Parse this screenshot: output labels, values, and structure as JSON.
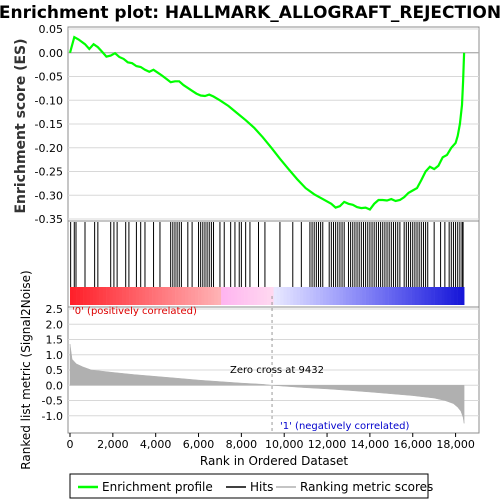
{
  "chart_data": [
    {
      "type": "line",
      "title": "Enrichment plot: HALLMARK_ALLOGRAFT_REJECTION",
      "ylabel": "Enrichment score (ES)",
      "ylim": [
        -0.35,
        0.05
      ],
      "yticks": [
        "0.05",
        "0.00",
        "-0.05",
        "-0.10",
        "-0.15",
        "-0.20",
        "-0.25",
        "-0.30",
        "-0.35"
      ],
      "grid": true,
      "series": [
        {
          "name": "Enrichment profile",
          "color": "#00ff00",
          "x": [
            0,
            200,
            400,
            700,
            900,
            1100,
            1300,
            1500,
            1700,
            1900,
            2100,
            2300,
            2500,
            2700,
            2900,
            3100,
            3300,
            3500,
            3700,
            3900,
            4100,
            4300,
            4500,
            4700,
            4900,
            5100,
            5300,
            5500,
            5700,
            5900,
            6100,
            6300,
            6500,
            6700,
            7000,
            7400,
            7800,
            8200,
            8600,
            9000,
            9400,
            9800,
            10200,
            10600,
            11000,
            11400,
            11800,
            12200,
            12400,
            12600,
            12800,
            13000,
            13200,
            13400,
            13600,
            13800,
            14000,
            14200,
            14400,
            14600,
            14800,
            15000,
            15200,
            15400,
            15600,
            15800,
            16000,
            16200,
            16400,
            16600,
            16800,
            17000,
            17200,
            17400,
            17600,
            17800,
            18000,
            18100,
            18200,
            18300,
            18350,
            18400
          ],
          "y": [
            0.0,
            0.033,
            0.028,
            0.018,
            0.008,
            0.018,
            0.012,
            0.002,
            -0.008,
            -0.006,
            -0.001,
            -0.009,
            -0.013,
            -0.02,
            -0.022,
            -0.028,
            -0.03,
            -0.036,
            -0.04,
            -0.036,
            -0.042,
            -0.048,
            -0.055,
            -0.062,
            -0.06,
            -0.06,
            -0.068,
            -0.074,
            -0.08,
            -0.086,
            -0.09,
            -0.091,
            -0.088,
            -0.092,
            -0.1,
            -0.112,
            -0.127,
            -0.142,
            -0.158,
            -0.178,
            -0.2,
            -0.223,
            -0.245,
            -0.266,
            -0.285,
            -0.298,
            -0.308,
            -0.318,
            -0.326,
            -0.323,
            -0.314,
            -0.318,
            -0.32,
            -0.325,
            -0.327,
            -0.326,
            -0.33,
            -0.318,
            -0.31,
            -0.31,
            -0.311,
            -0.308,
            -0.312,
            -0.31,
            -0.304,
            -0.295,
            -0.29,
            -0.285,
            -0.268,
            -0.25,
            -0.24,
            -0.245,
            -0.238,
            -0.22,
            -0.215,
            -0.2,
            -0.19,
            -0.175,
            -0.15,
            -0.11,
            -0.06,
            0.0
          ]
        }
      ],
      "zero_line": 0.0
    },
    {
      "type": "scatter",
      "series": [
        {
          "name": "Hits",
          "color": "#000000",
          "x": [
            30,
            200,
            280,
            700,
            1150,
            1300,
            1900,
            2050,
            2200,
            2600,
            2750,
            3100,
            3300,
            3500,
            3900,
            4200,
            4700,
            4800,
            4900,
            5000,
            5100,
            5200,
            5500,
            5700,
            6000,
            6100,
            6200,
            6300,
            6400,
            6500,
            6600,
            6700,
            7000,
            7200,
            7500,
            7700,
            7900,
            8000,
            8200,
            8400,
            8800,
            9100,
            9800,
            10400,
            10800,
            11200,
            11300,
            11400,
            11500,
            11600,
            11700,
            11800,
            12100,
            12200,
            12300,
            12400,
            12500,
            12600,
            12700,
            12800,
            13000,
            13100,
            13200,
            13300,
            13400,
            13500,
            13600,
            13700,
            13800,
            13900,
            14000,
            14100,
            14200,
            14300,
            14400,
            14500,
            14600,
            14700,
            14800,
            14900,
            15000,
            15100,
            15200,
            15300,
            15400,
            15600,
            15700,
            15800,
            15900,
            16000,
            16100,
            16200,
            16300,
            16400,
            16500,
            16600,
            16700,
            17000,
            17300,
            17500,
            17700,
            17800,
            17900,
            18000,
            18100,
            18200,
            18300,
            18350
          ]
        }
      ]
    },
    {
      "type": "area",
      "ylabel": "Ranked list metric (Signal2Noise)",
      "xlabel": "Rank in Ordered Dataset",
      "xlim": [
        0,
        19000
      ],
      "ylim": [
        -1.5,
        2.5
      ],
      "xticks": [
        "0",
        "2,000",
        "4,000",
        "6,000",
        "8,000",
        "10,000",
        "12,000",
        "14,000",
        "16,000",
        "18,000"
      ],
      "yticks": [
        "2.5",
        "2.0",
        "1.5",
        "1.0",
        "0.5",
        "0.0",
        "-0.5",
        "-1.0"
      ],
      "series": [
        {
          "name": "Ranking metric scores",
          "color": "#b0b0b0",
          "x": [
            0,
            100,
            300,
            600,
            1000,
            2000,
            3000,
            4000,
            5000,
            6000,
            7000,
            8000,
            9000,
            9432,
            10000,
            11000,
            12000,
            13000,
            14000,
            15000,
            16000,
            17000,
            17500,
            17900,
            18100,
            18250,
            18350,
            18400
          ],
          "y": [
            1.35,
            0.85,
            0.7,
            0.6,
            0.5,
            0.42,
            0.35,
            0.29,
            0.23,
            0.17,
            0.12,
            0.07,
            0.03,
            0.0,
            -0.03,
            -0.08,
            -0.12,
            -0.17,
            -0.22,
            -0.28,
            -0.34,
            -0.42,
            -0.5,
            -0.6,
            -0.72,
            -0.85,
            -1.05,
            -1.25
          ]
        }
      ],
      "annotations": [
        "'0' (positively correlated)",
        "'1' (negatively correlated)",
        "Zero cross at 9432"
      ]
    }
  ],
  "legend": {
    "items": [
      {
        "label": "Enrichment profile",
        "color": "#00ff00"
      },
      {
        "label": "Hits",
        "color": "#000000"
      },
      {
        "label": "Ranking metric scores",
        "color": "#b0b0b0"
      }
    ]
  }
}
